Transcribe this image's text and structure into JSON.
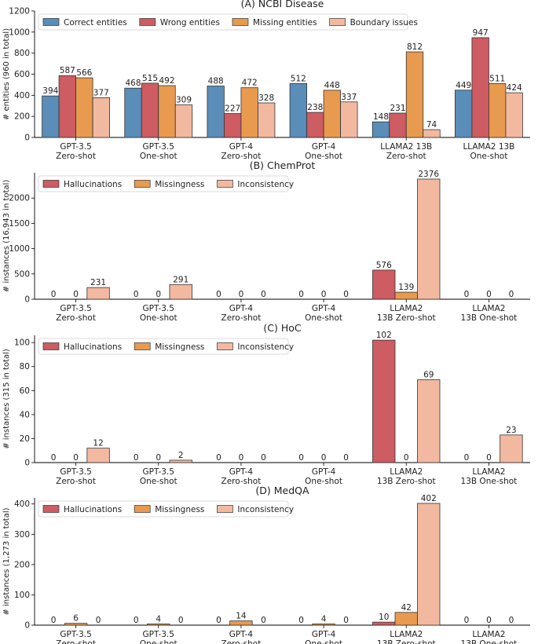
{
  "colors": {
    "correct": "#5a8db8",
    "wrong": "#cd5c63",
    "missing": "#e89a4f",
    "boundary": "#f2b9a0",
    "edge": "#333333"
  },
  "chart_data": [
    {
      "type": "bar",
      "title": "(A) NCBI Disease",
      "ylabel": "# entities (960 in total)",
      "ylim": [
        0,
        1200
      ],
      "yticks": [
        0,
        200,
        400,
        600,
        800,
        1000,
        1200
      ],
      "categories": [
        "GPT-3.5\nZero-shot",
        "GPT-3.5\nOne-shot",
        "GPT-4\nZero-shot",
        "GPT-4\nOne-shot",
        "LLAMA2 13B\nZero-shot",
        "LLAMA2 13B\nOne-shot"
      ],
      "legend": "top-left",
      "series": [
        {
          "name": "Correct entities",
          "color_key": "correct",
          "values": [
            394,
            468,
            488,
            512,
            148,
            449
          ]
        },
        {
          "name": "Wrong entities",
          "color_key": "wrong",
          "values": [
            587,
            515,
            227,
            238,
            231,
            947
          ]
        },
        {
          "name": "Missing entities",
          "color_key": "missing",
          "values": [
            566,
            492,
            472,
            448,
            812,
            511
          ]
        },
        {
          "name": "Boundary issues",
          "color_key": "boundary",
          "values": [
            377,
            309,
            328,
            337,
            74,
            424
          ]
        }
      ]
    },
    {
      "type": "bar",
      "title": "(B) ChemProt",
      "ylabel": "# instances (16,943 in total)",
      "ylim": [
        0,
        2500
      ],
      "yticks": [
        0,
        500,
        1000,
        1500,
        2000
      ],
      "categories": [
        "GPT-3.5\nZero-shot",
        "GPT-3.5\nOne-shot",
        "GPT-4\nZero-shot",
        "GPT-4\nOne-shot",
        "LLAMA2\n13B Zero-shot",
        "LLAMA2\n13B One-shot"
      ],
      "legend": "top-left",
      "series": [
        {
          "name": "Hallucinations",
          "color_key": "wrong",
          "values": [
            0,
            0,
            0,
            0,
            576,
            0
          ]
        },
        {
          "name": "Missingness",
          "color_key": "missing",
          "values": [
            0,
            0,
            0,
            0,
            139,
            0
          ]
        },
        {
          "name": "Inconsistency",
          "color_key": "boundary",
          "values": [
            231,
            291,
            0,
            0,
            2376,
            0
          ]
        }
      ]
    },
    {
      "type": "bar",
      "title": "(C) HoC",
      "ylabel": "# instances (315 in total)",
      "ylim": [
        0,
        106
      ],
      "yticks": [
        0,
        20,
        40,
        60,
        80,
        100
      ],
      "categories": [
        "GPT-3.5\nZero-shot",
        "GPT-3.5\nOne-shot",
        "GPT-4\nZero-shot",
        "GPT-4\nOne-shot",
        "LLAMA2\n13B Zero-shot",
        "LLAMA2\n13B One-shot"
      ],
      "legend": "top-left",
      "series": [
        {
          "name": "Hallucinations",
          "color_key": "wrong",
          "values": [
            0,
            0,
            0,
            0,
            102,
            0
          ]
        },
        {
          "name": "Missingness",
          "color_key": "missing",
          "values": [
            0,
            0,
            0,
            0,
            0,
            0
          ]
        },
        {
          "name": "Inconsistency",
          "color_key": "boundary",
          "values": [
            12,
            2,
            0,
            0,
            69,
            23
          ]
        }
      ]
    },
    {
      "type": "bar",
      "title": "(D) MedQA",
      "ylabel": "# instances (1,273 in total)",
      "ylim": [
        0,
        420
      ],
      "yticks": [
        0,
        100,
        200,
        300,
        400
      ],
      "categories": [
        "GPT-3.5\nZero-shot",
        "GPT-3.5\nOne-shot",
        "GPT-4\nZero-shot",
        "GPT-4\nOne-shot",
        "LLAMA2\n13B Zero-shot",
        "LLAMA2\n13B One-shot"
      ],
      "legend": "top-left",
      "series": [
        {
          "name": "Hallucinations",
          "color_key": "wrong",
          "values": [
            0,
            0,
            0,
            0,
            10,
            0
          ]
        },
        {
          "name": "Missingness",
          "color_key": "missing",
          "values": [
            6,
            4,
            14,
            4,
            42,
            0
          ]
        },
        {
          "name": "Inconsistency",
          "color_key": "boundary",
          "values": [
            0,
            0,
            0,
            0,
            402,
            0
          ]
        }
      ]
    }
  ]
}
